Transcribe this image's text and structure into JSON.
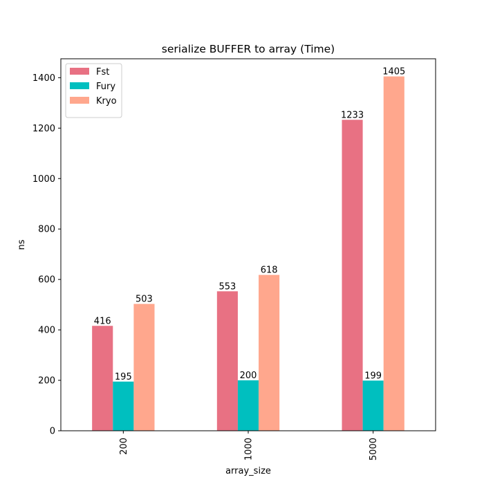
{
  "chart_data": {
    "type": "bar",
    "title": "serialize BUFFER to array (Time)",
    "xlabel": "array_size",
    "ylabel": "ns",
    "categories": [
      "200",
      "1000",
      "5000"
    ],
    "series": [
      {
        "name": "Fst",
        "color": "#e87183",
        "values": [
          416,
          553,
          1233
        ]
      },
      {
        "name": "Fury",
        "color": "#00bfbf",
        "values": [
          195,
          200,
          199
        ]
      },
      {
        "name": "Kryo",
        "color": "#ffa78d",
        "values": [
          503,
          618,
          1405
        ]
      }
    ],
    "ylim": [
      0,
      1475
    ],
    "yticks": [
      0,
      200,
      400,
      600,
      800,
      1000,
      1200,
      1400
    ],
    "legend": "top-left",
    "grid": false
  }
}
